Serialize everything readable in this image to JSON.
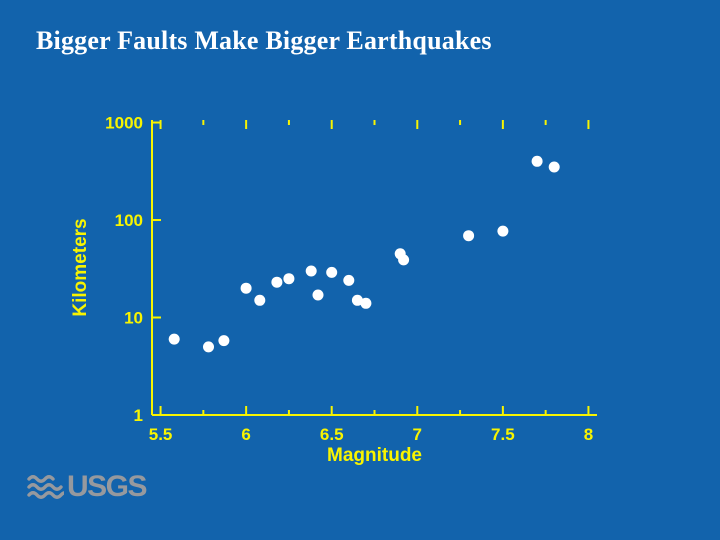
{
  "slide": {
    "title": "Bigger Faults Make Bigger Earthquakes",
    "background_color": "#1263ac",
    "title_color": "#ffffff"
  },
  "logo": {
    "text": "USGS",
    "color": "#96999e"
  },
  "chart_data": {
    "type": "scatter",
    "title": "",
    "xlabel": "Magnitude",
    "ylabel": "Kilometers",
    "xlim": [
      5.5,
      8
    ],
    "ylim": [
      1,
      1000
    ],
    "y_scale": "log",
    "grid": false,
    "legend": "none",
    "axis_color": "#f8f400",
    "point_color": "#ffffff",
    "x_ticks": [
      {
        "label": "5.5",
        "value": 5.5
      },
      {
        "label": "6",
        "value": 6
      },
      {
        "label": "6.5",
        "value": 6.5
      },
      {
        "label": "7",
        "value": 7
      },
      {
        "label": "7.5",
        "value": 7.5
      },
      {
        "label": "8",
        "value": 8
      }
    ],
    "x_minor_ticks": [
      5.75,
      6.25,
      6.75,
      7.25,
      7.75
    ],
    "y_ticks": [
      {
        "label": "1",
        "value": 1
      },
      {
        "label": "10",
        "value": 10
      },
      {
        "label": "100",
        "value": 100
      },
      {
        "label": "1000",
        "value": 1000
      }
    ],
    "points": [
      {
        "magnitude": 5.58,
        "kilometers": 6
      },
      {
        "magnitude": 5.78,
        "kilometers": 5
      },
      {
        "magnitude": 5.87,
        "kilometers": 5.8
      },
      {
        "magnitude": 6.0,
        "kilometers": 20
      },
      {
        "magnitude": 6.08,
        "kilometers": 15
      },
      {
        "magnitude": 6.18,
        "kilometers": 23
      },
      {
        "magnitude": 6.25,
        "kilometers": 25
      },
      {
        "magnitude": 6.38,
        "kilometers": 30
      },
      {
        "magnitude": 6.42,
        "kilometers": 17
      },
      {
        "magnitude": 6.5,
        "kilometers": 29
      },
      {
        "magnitude": 6.6,
        "kilometers": 24
      },
      {
        "magnitude": 6.65,
        "kilometers": 15
      },
      {
        "magnitude": 6.7,
        "kilometers": 14
      },
      {
        "magnitude": 6.9,
        "kilometers": 45
      },
      {
        "magnitude": 6.92,
        "kilometers": 39
      },
      {
        "magnitude": 7.3,
        "kilometers": 69
      },
      {
        "magnitude": 7.5,
        "kilometers": 77
      },
      {
        "magnitude": 7.7,
        "kilometers": 400
      },
      {
        "magnitude": 7.8,
        "kilometers": 350
      }
    ]
  }
}
